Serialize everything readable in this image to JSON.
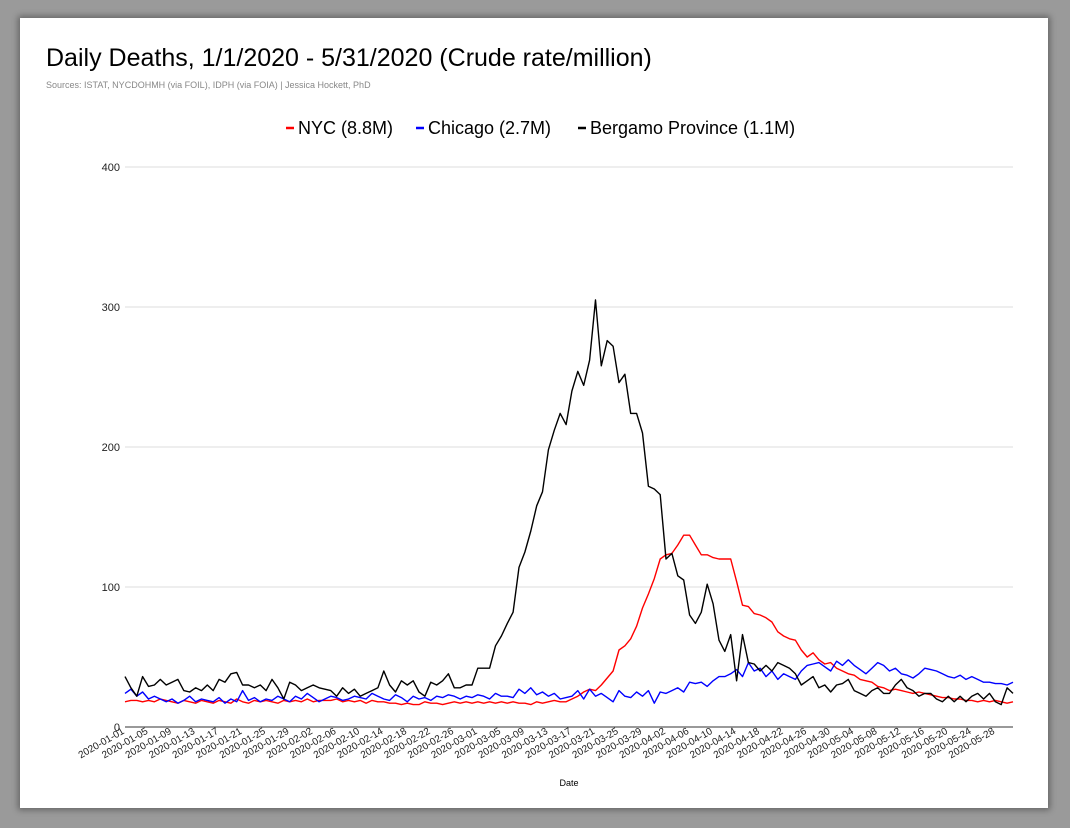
{
  "chart_data": {
    "type": "line",
    "title": "Daily Deaths, 1/1/2020 - 5/31/2020 (Crude rate/million)",
    "subtitle": "Sources: ISTAT, NYCDOHMH (via FOIL), IDPH (via FOIA) | Jessica Hockett, PhD",
    "xlabel": "Date",
    "ylabel": "",
    "ylim": [
      0,
      400
    ],
    "yticks": [
      0,
      100,
      200,
      300,
      400
    ],
    "grid": true,
    "legend_position": "top",
    "x_start": "2020-01-01",
    "x_end": "2020-05-31",
    "x_tick_labels": [
      "2020-01-01",
      "2020-01-05",
      "2020-01-09",
      "2020-01-13",
      "2020-01-17",
      "2020-01-21",
      "2020-01-25",
      "2020-01-29",
      "2020-02-02",
      "2020-02-06",
      "2020-02-10",
      "2020-02-14",
      "2020-02-18",
      "2020-02-22",
      "2020-02-26",
      "2020-03-01",
      "2020-03-05",
      "2020-03-09",
      "2020-03-13",
      "2020-03-17",
      "2020-03-21",
      "2020-03-25",
      "2020-03-29",
      "2020-04-02",
      "2020-04-06",
      "2020-04-10",
      "2020-04-14",
      "2020-04-18",
      "2020-04-22",
      "2020-04-26",
      "2020-04-30",
      "2020-05-04",
      "2020-05-08",
      "2020-05-12",
      "2020-05-16",
      "2020-05-20",
      "2020-05-24",
      "2020-05-28"
    ],
    "series": [
      {
        "name": "NYC (8.8M)",
        "color": "#ff0000",
        "values": [
          18,
          19,
          19,
          18,
          19,
          18,
          20,
          19,
          18,
          17,
          19,
          18,
          17,
          19,
          18,
          17,
          19,
          18,
          17,
          20,
          18,
          17,
          19,
          18,
          19,
          18,
          17,
          19,
          18,
          19,
          18,
          20,
          18,
          19,
          19,
          19,
          20,
          18,
          19,
          18,
          19,
          17,
          19,
          18,
          18,
          17,
          17,
          16,
          17,
          16,
          16,
          18,
          17,
          17,
          16,
          17,
          18,
          17,
          18,
          17,
          18,
          17,
          18,
          17,
          18,
          17,
          18,
          17,
          17,
          16,
          18,
          17,
          18,
          19,
          18,
          18,
          20,
          22,
          25,
          27,
          26,
          30,
          35,
          40,
          55,
          58,
          63,
          72,
          85,
          95,
          106,
          120,
          123,
          124,
          130,
          137,
          137,
          130,
          123,
          123,
          121,
          120,
          120,
          120,
          104,
          87,
          86,
          81,
          80,
          78,
          75,
          68,
          65,
          63,
          62,
          55,
          50,
          53,
          48,
          45,
          46,
          42,
          40,
          38,
          37,
          34,
          33,
          32,
          29,
          28,
          26,
          27,
          26,
          25,
          24,
          25,
          24,
          23,
          22,
          21,
          21,
          20,
          20,
          19,
          19,
          18,
          19,
          18,
          19,
          18,
          17,
          18
        ]
      },
      {
        "name": "Chicago (2.7M)",
        "color": "#0000ff",
        "values": [
          24,
          27,
          22,
          25,
          20,
          22,
          20,
          18,
          20,
          17,
          19,
          22,
          18,
          20,
          19,
          18,
          21,
          17,
          20,
          18,
          26,
          19,
          21,
          18,
          20,
          19,
          22,
          20,
          18,
          22,
          20,
          24,
          21,
          18,
          20,
          22,
          21,
          19,
          20,
          22,
          21,
          20,
          24,
          22,
          20,
          19,
          23,
          21,
          18,
          22,
          20,
          21,
          19,
          22,
          21,
          23,
          22,
          20,
          22,
          21,
          23,
          22,
          20,
          24,
          22,
          22,
          21,
          27,
          24,
          28,
          23,
          25,
          22,
          24,
          20,
          21,
          22,
          26,
          20,
          27,
          22,
          24,
          21,
          18,
          26,
          22,
          21,
          25,
          22,
          26,
          17,
          25,
          24,
          26,
          28,
          25,
          32,
          31,
          32,
          29,
          33,
          36,
          36,
          38,
          41,
          36,
          46,
          40,
          42,
          36,
          40,
          34,
          38,
          36,
          34,
          40,
          44,
          45,
          46,
          43,
          40,
          47,
          44,
          48,
          44,
          41,
          38,
          42,
          46,
          44,
          40,
          42,
          38,
          37,
          35,
          38,
          42,
          41,
          40,
          38,
          36,
          35,
          37,
          34,
          36,
          34,
          32,
          32,
          31,
          31,
          30,
          32
        ]
      },
      {
        "name": "Bergamo Province (1.1M)",
        "color": "#000000",
        "values": [
          36,
          28,
          22,
          36,
          29,
          30,
          34,
          30,
          32,
          34,
          26,
          25,
          28,
          26,
          30,
          26,
          34,
          32,
          38,
          39,
          30,
          30,
          28,
          30,
          26,
          34,
          28,
          20,
          32,
          30,
          26,
          28,
          30,
          28,
          27,
          26,
          22,
          28,
          24,
          27,
          22,
          24,
          26,
          28,
          40,
          30,
          25,
          33,
          30,
          33,
          25,
          22,
          32,
          30,
          33,
          38,
          28,
          28,
          30,
          30,
          42,
          42,
          42,
          58,
          65,
          74,
          82,
          114,
          125,
          140,
          158,
          168,
          198,
          212,
          224,
          216,
          240,
          254,
          244,
          262,
          305,
          258,
          276,
          272,
          246,
          252,
          224,
          224,
          210,
          172,
          170,
          166,
          120,
          124,
          108,
          105,
          80,
          74,
          82,
          102,
          88,
          62,
          54,
          66,
          33,
          66,
          46,
          45,
          40,
          44,
          40,
          46,
          44,
          42,
          38,
          30,
          33,
          36,
          28,
          30,
          25,
          30,
          31,
          34,
          26,
          24,
          22,
          26,
          28,
          24,
          24,
          30,
          34,
          28,
          26,
          22,
          24,
          24,
          20,
          18,
          22,
          18,
          22,
          18,
          22,
          24,
          20,
          24,
          18,
          16,
          28,
          24
        ]
      }
    ]
  }
}
